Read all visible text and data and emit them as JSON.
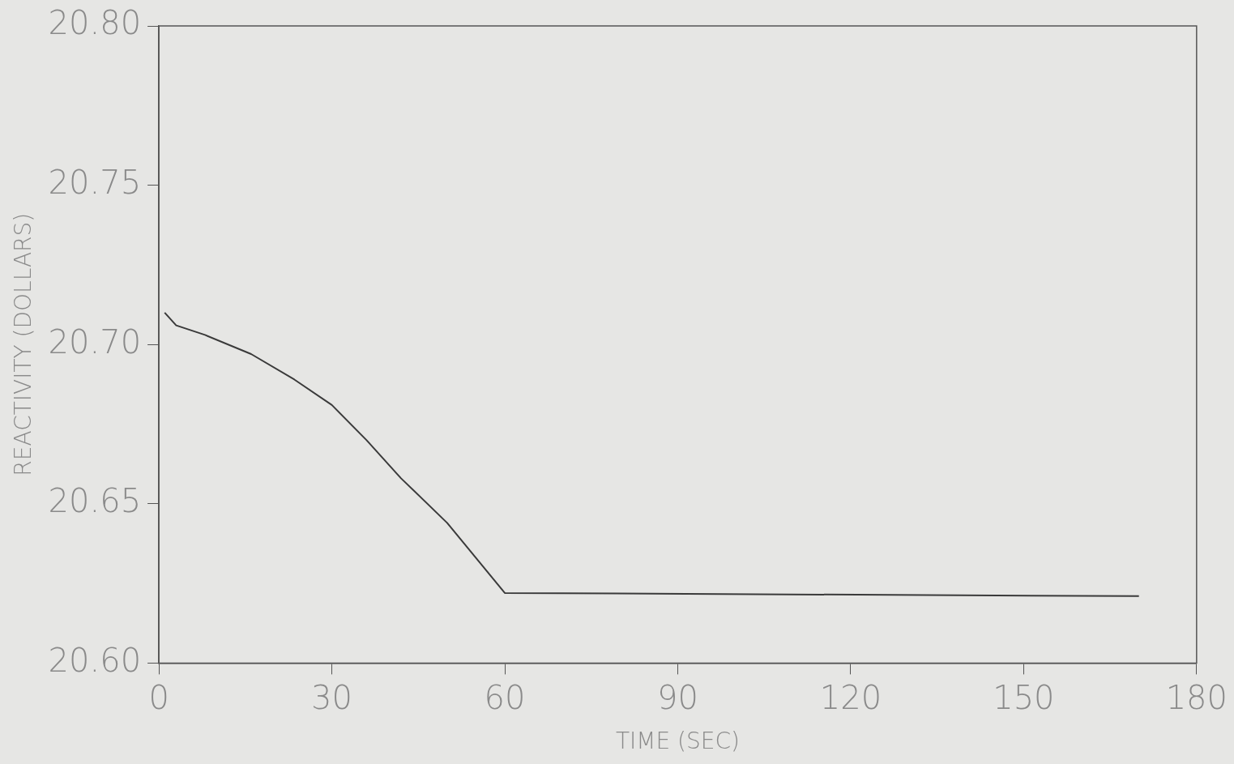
{
  "chart_data": {
    "type": "line",
    "xlabel": "TIME (SEC)",
    "ylabel": "REACTIVITY (DOLLARS)",
    "series": [
      {
        "color": "#3a3a3a",
        "x": [
          1,
          3,
          8,
          16,
          23.5,
          30,
          36,
          42,
          50,
          60,
          170
        ],
        "values": [
          20.71,
          20.706,
          20.703,
          20.697,
          20.689,
          20.681,
          20.67,
          20.658,
          20.644,
          20.622,
          20.621
        ]
      }
    ],
    "xlim": [
      0,
      180
    ],
    "xticks": [
      0,
      30,
      60,
      90,
      120,
      150,
      180
    ],
    "ylim": [
      20.6,
      20.8
    ],
    "yticks": [
      {
        "value": 20.6,
        "label": "20.60"
      },
      20.65,
      {
        "value": 20.7,
        "label": "20.70"
      },
      20.75,
      {
        "value": 20.8,
        "label": "20.80"
      }
    ],
    "grid": false,
    "legend": false,
    "marker": "none",
    "line_style": "solid"
  }
}
